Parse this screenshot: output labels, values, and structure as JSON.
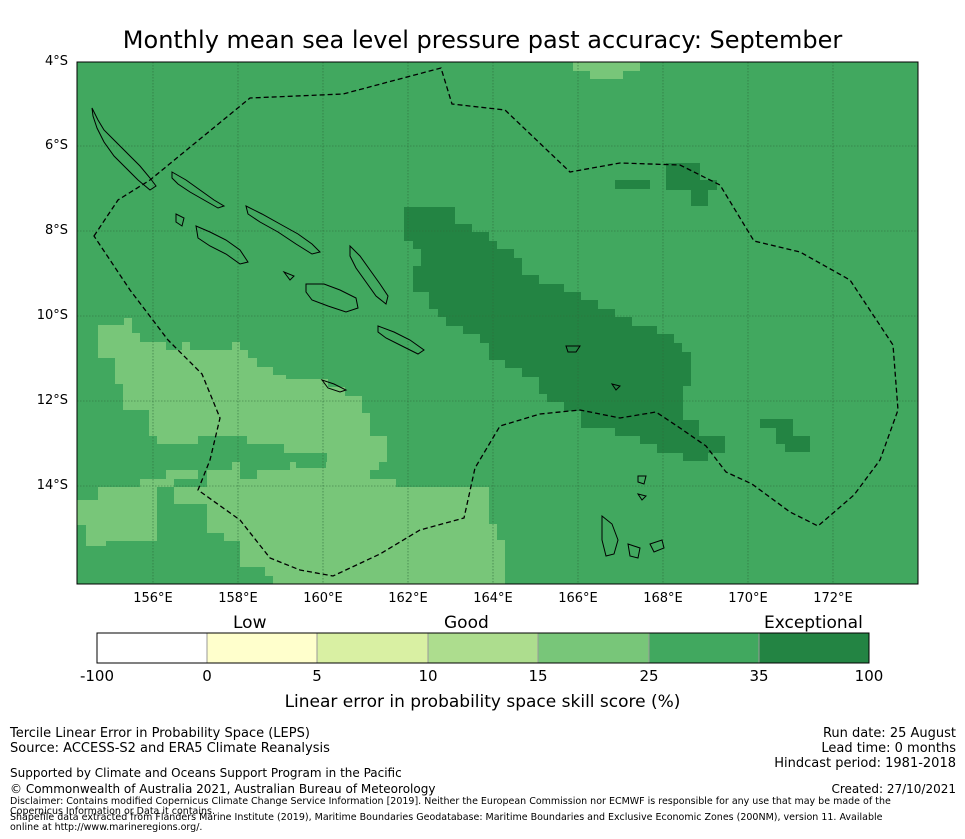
{
  "title": "Monthly mean sea level pressure past accuracy: September",
  "map": {
    "lat_labels": [
      "4°S",
      "6°S",
      "8°S",
      "10°S",
      "12°S",
      "14°S"
    ],
    "lon_labels": [
      "156°E",
      "158°E",
      "160°E",
      "162°E",
      "164°E",
      "166°E",
      "168°E",
      "170°E",
      "172°E"
    ],
    "colors": {
      "background": "#41a85f",
      "light": "#78c679",
      "dark": "#238443",
      "coast": "#000000",
      "grid": "#2e6b3a"
    }
  },
  "colorbar": {
    "categories": [
      "Low",
      "Good",
      "Exceptional"
    ],
    "ticks": [
      "-100",
      "0",
      "5",
      "10",
      "15",
      "25",
      "35",
      "100"
    ],
    "colors": [
      "#ffffff",
      "#ffffcc",
      "#d9f0a3",
      "#addd8e",
      "#78c679",
      "#41a85f",
      "#238443"
    ],
    "label": "Linear error in probability space skill score (%)"
  },
  "footer": {
    "method": "Tercile Linear Error in Probability Space (LEPS)",
    "source": "Source: ACCESS-S2 and ERA5 Climate Reanalysis",
    "support": "Supported by Climate and Oceans Support Program in the Pacific",
    "copyright": "© Commonwealth of Australia 2021, Australian Bureau of Meteorology",
    "disclaimer": "Disclaimer: Contains modified Copernicus Climate Change Service Information [2019]. Neither the European Commission nor ECMWF is responsible for any use that may be made of the Copernicus Information or Data it contains.",
    "shapefile": "Shapefile data extracted from Flanders Marine Institute (2019), Maritime Boundaries Geodatabase: Maritime Boundaries and Exclusive Economic Zones (200NM), version 11. Available online at http://www.marineregions.org/.",
    "run_date": "Run date: 25 August",
    "lead_time": "Lead time: 0 months",
    "hindcast": "Hindcast period: 1981-2018",
    "created": "Created: 27/10/2021"
  }
}
